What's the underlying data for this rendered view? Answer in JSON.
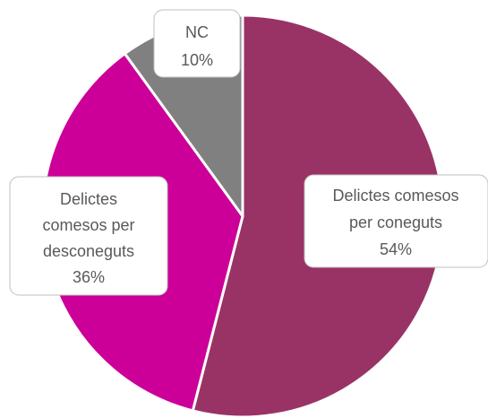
{
  "chart_data": {
    "type": "pie",
    "title": "",
    "slices": [
      {
        "name": "Delictes comesos per coneguts",
        "value": 54,
        "label_lines": [
          "Delictes comesos",
          "per coneguts"
        ],
        "pct": "54%",
        "color": "#993366"
      },
      {
        "name": "Delictes comesos per desconeguts",
        "value": 36,
        "label_lines": [
          "Delictes",
          "comesos per",
          "desconeguts"
        ],
        "pct": "36%",
        "color": "#CC0099"
      },
      {
        "name": "NC",
        "value": 10,
        "label_lines": [
          "NC"
        ],
        "pct": "10%",
        "color": "#808080"
      }
    ],
    "start_angle_deg": 0,
    "direction": "clockwise",
    "legend": "none",
    "data_labels": "callout boxes with name and percentage"
  }
}
